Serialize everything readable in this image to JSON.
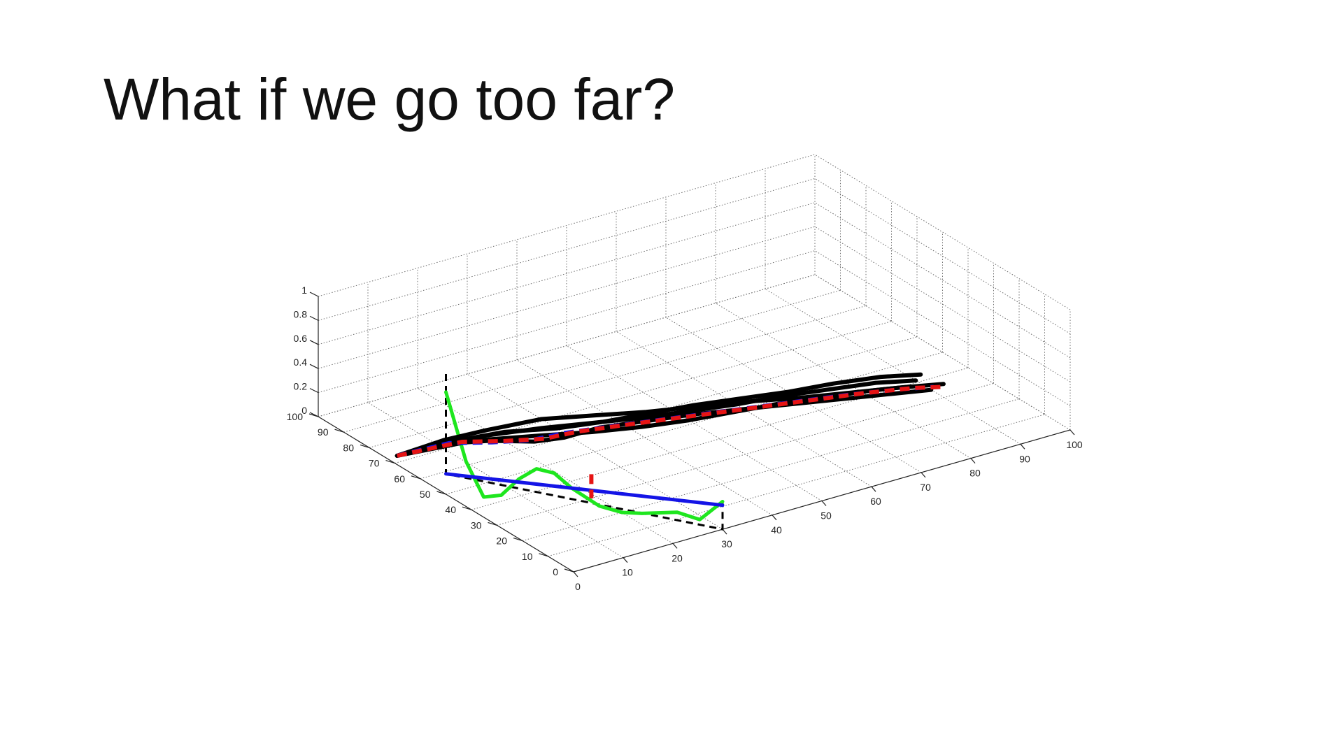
{
  "slide": {
    "title": "What if we go too far?"
  },
  "chart_data": {
    "type": "line",
    "view": "3d",
    "grid": true,
    "legend": "none",
    "xlim": [
      0,
      100
    ],
    "ylim": [
      0,
      100
    ],
    "zlim": [
      0,
      1
    ],
    "xticks": [
      "0",
      "10",
      "20",
      "30",
      "40",
      "50",
      "60",
      "70",
      "80",
      "90",
      "100"
    ],
    "yticks": [
      "0",
      "10",
      "20",
      "30",
      "40",
      "50",
      "60",
      "70",
      "80",
      "90",
      "100"
    ],
    "zticks": [
      "0",
      "0.2",
      "0.4",
      "0.6",
      "0.8",
      "1"
    ],
    "colors": {
      "black": "#000000",
      "blue": "#1414e6",
      "red": "#e61414",
      "green": "#1ee61e",
      "grid": "#6e6e6e"
    },
    "series": [
      {
        "color": "black",
        "style": "dashed",
        "points": [
          [
            0,
            50,
            1
          ],
          [
            0,
            50,
            0.17
          ],
          [
            30,
            0,
            0
          ],
          [
            30,
            0,
            0.23
          ]
        ]
      },
      {
        "color": "green",
        "style": "solid",
        "points": [
          [
            0,
            50,
            0.85
          ],
          [
            2,
            46,
            0.3
          ],
          [
            4,
            43,
            0.02
          ],
          [
            6,
            40,
            0.05
          ],
          [
            8,
            37,
            0.2
          ],
          [
            10,
            34,
            0.3
          ],
          [
            12,
            31,
            0.28
          ],
          [
            14,
            28,
            0.17
          ],
          [
            17,
            23,
            0.05
          ],
          [
            20,
            20,
            0
          ],
          [
            22,
            16,
            0.02
          ],
          [
            26,
            10,
            0.06
          ],
          [
            28,
            5,
            0.04
          ],
          [
            30,
            0,
            0.23
          ]
        ]
      },
      {
        "color": "blue",
        "style": "solid",
        "points": [
          [
            0,
            50,
            0.17
          ],
          [
            30,
            0,
            0.2
          ]
        ]
      },
      {
        "color": "red",
        "style": "dashed",
        "points": [
          [
            19,
            30,
            0.2
          ],
          [
            19,
            30,
            0
          ]
        ]
      },
      {
        "color": "black",
        "style": "solid",
        "points": [
          [
            2,
            73,
            0
          ],
          [
            10,
            73,
            0
          ],
          [
            18,
            68,
            0
          ],
          [
            24,
            62,
            0
          ],
          [
            29,
            60,
            0
          ],
          [
            36,
            60,
            0
          ],
          [
            44,
            57,
            0
          ],
          [
            52,
            54,
            0
          ],
          [
            60,
            50,
            0
          ],
          [
            68,
            46,
            0
          ],
          [
            76,
            42,
            0
          ],
          [
            84,
            38,
            0
          ],
          [
            90,
            35,
            0
          ]
        ]
      },
      {
        "color": "black",
        "style": "solid",
        "points": [
          [
            2,
            73,
            0
          ],
          [
            14,
            72,
            0
          ],
          [
            22,
            70,
            0
          ],
          [
            30,
            65,
            0
          ],
          [
            38,
            62,
            0
          ],
          [
            46,
            60,
            0
          ],
          [
            54,
            58,
            0
          ],
          [
            62,
            55,
            0
          ],
          [
            70,
            52,
            0
          ],
          [
            78,
            50,
            0
          ],
          [
            86,
            47,
            0
          ],
          [
            92,
            43,
            0
          ]
        ]
      },
      {
        "color": "black",
        "style": "solid",
        "points": [
          [
            2,
            73,
            0
          ],
          [
            16,
            70,
            0
          ],
          [
            26,
            64,
            0
          ],
          [
            34,
            59,
            0
          ],
          [
            42,
            55,
            0
          ],
          [
            50,
            52,
            0
          ],
          [
            58,
            50,
            0
          ],
          [
            66,
            48,
            0
          ],
          [
            74,
            45,
            0
          ],
          [
            82,
            42,
            0
          ],
          [
            88,
            39,
            0
          ]
        ]
      },
      {
        "color": "black",
        "style": "solid",
        "points": [
          [
            2,
            73,
            0
          ],
          [
            12,
            74,
            0
          ],
          [
            20,
            73,
            0
          ],
          [
            30,
            71,
            0
          ],
          [
            38,
            66,
            0
          ],
          [
            46,
            61,
            0
          ],
          [
            54,
            57,
            0
          ],
          [
            62,
            53,
            0
          ],
          [
            70,
            48,
            0
          ],
          [
            78,
            44,
            0
          ],
          [
            86,
            40,
            0
          ],
          [
            93,
            36,
            0
          ]
        ]
      },
      {
        "color": "black",
        "style": "solid",
        "points": [
          [
            2,
            73,
            0
          ],
          [
            18,
            71,
            0
          ],
          [
            28,
            67,
            0
          ],
          [
            36,
            63,
            0
          ],
          [
            44,
            59,
            0
          ],
          [
            52,
            56,
            0
          ],
          [
            60,
            53,
            0
          ],
          [
            68,
            51,
            0
          ],
          [
            76,
            48,
            0
          ],
          [
            84,
            45,
            0
          ],
          [
            90,
            41,
            0
          ]
        ]
      },
      {
        "color": "blue",
        "style": "dashed",
        "points": [
          [
            2,
            73,
            0
          ],
          [
            12,
            72,
            0
          ],
          [
            18,
            67,
            0
          ],
          [
            24,
            63,
            0
          ],
          [
            30,
            62,
            0
          ],
          [
            38,
            59,
            0
          ],
          [
            48,
            55,
            0
          ],
          [
            58,
            51,
            0
          ],
          [
            68,
            47,
            0
          ],
          [
            78,
            43,
            0
          ],
          [
            86,
            39,
            0
          ],
          [
            91,
            36,
            0
          ]
        ]
      },
      {
        "color": "red",
        "style": "dashed",
        "points": [
          [
            2,
            73,
            0
          ],
          [
            14,
            71,
            0
          ],
          [
            20,
            66,
            0
          ],
          [
            26,
            62,
            0
          ],
          [
            32,
            61,
            0
          ],
          [
            40,
            58,
            0
          ],
          [
            50,
            54,
            0
          ],
          [
            60,
            50,
            0
          ],
          [
            70,
            46,
            0
          ],
          [
            80,
            42,
            0
          ],
          [
            88,
            38,
            0
          ],
          [
            92,
            35,
            0
          ]
        ]
      }
    ]
  }
}
